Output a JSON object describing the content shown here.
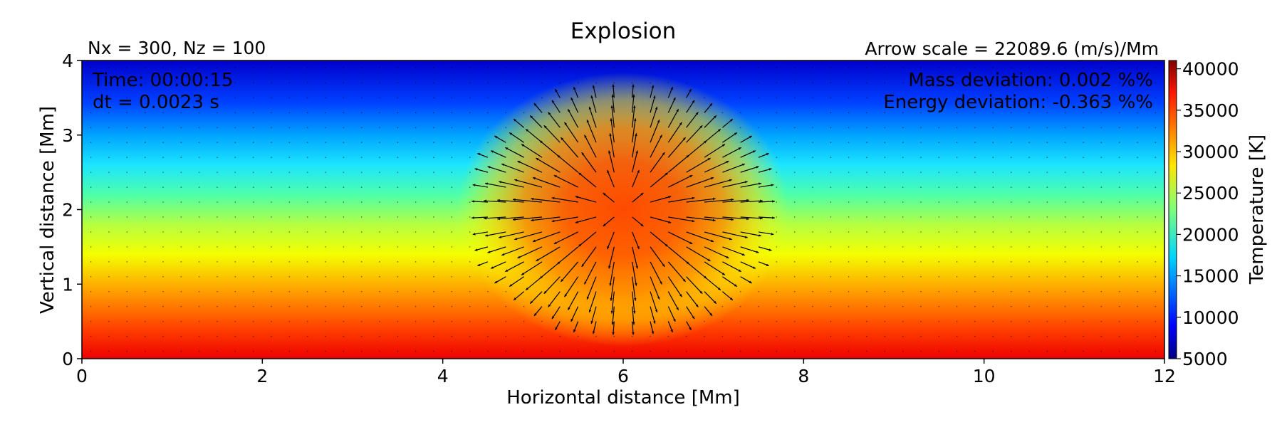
{
  "chart_data": {
    "type": "heatmap",
    "title": "Explosion",
    "grid_label": "Nx = 300, Nz = 100",
    "arrow_scale_label": "Arrow scale = 22089.6 (m/s)/Mm",
    "xlabel": "Horizontal distance [Mm]",
    "ylabel": "Vertical distance [Mm]",
    "xlim": [
      0,
      12
    ],
    "ylim": [
      0,
      4
    ],
    "x_ticks": [
      "0",
      "2",
      "4",
      "6",
      "8",
      "10",
      "12"
    ],
    "y_ticks": [
      "0",
      "1",
      "2",
      "3",
      "4"
    ],
    "colorbar": {
      "label": "Temperature [K]",
      "range": [
        5000,
        41000
      ],
      "ticks": [
        "5000",
        "10000",
        "15000",
        "20000",
        "25000",
        "30000",
        "35000",
        "40000"
      ],
      "colormap": "jet"
    },
    "annotations": {
      "time": "Time: 00:00:15",
      "dt": "dt = 0.0023 s",
      "mass_deviation": "Mass deviation: 0.002 %%",
      "energy_deviation": "Energy deviation: -0.363 %%"
    },
    "temperature_field": {
      "background_bottom_K": 40000,
      "background_top_K": 5000,
      "hotspot_center_Mm": [
        6,
        2
      ],
      "hotspot_radius_Mm": 1.7,
      "hotspot_peak_K": 38000
    },
    "velocity_field": {
      "pattern": "radial outward from explosion center",
      "center_Mm": [
        6,
        2
      ],
      "outer_radius_Mm": 1.7
    }
  }
}
